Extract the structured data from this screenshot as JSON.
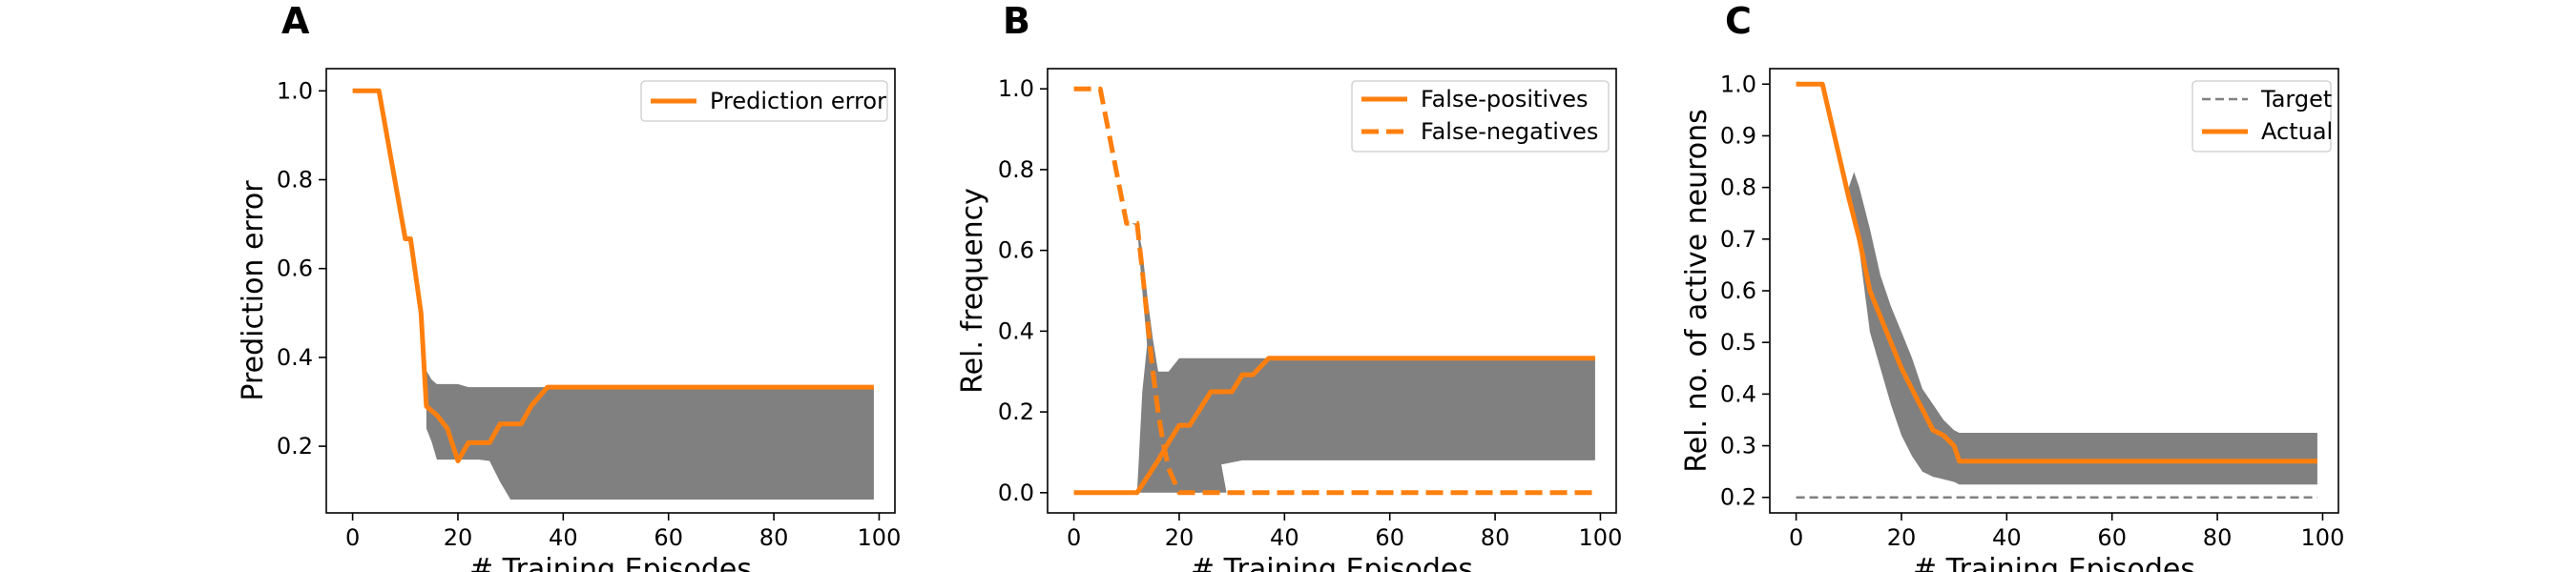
{
  "chart_data": [
    {
      "panel": "A",
      "type": "line",
      "xlabel": "# Training Episodes",
      "ylabel": "Prediction error",
      "xlim": [
        -5,
        103
      ],
      "ylim": [
        0.05,
        1.05
      ],
      "xticks": [
        0,
        20,
        40,
        60,
        80,
        100
      ],
      "yticks": [
        0.2,
        0.4,
        0.6,
        0.8,
        1.0
      ],
      "legend": "top-right",
      "series": [
        {
          "name": "Prediction error",
          "style": "solid",
          "x": [
            0,
            5,
            10,
            11,
            13,
            14,
            16,
            18,
            20,
            22,
            24,
            26,
            28,
            30,
            32,
            34,
            37,
            40,
            60,
            80,
            99
          ],
          "y": [
            1.0,
            1.0,
            0.667,
            0.667,
            0.5,
            0.29,
            0.27,
            0.24,
            0.167,
            0.208,
            0.208,
            0.208,
            0.25,
            0.25,
            0.25,
            0.292,
            0.333,
            0.333,
            0.333,
            0.333,
            0.333
          ]
        }
      ],
      "band": {
        "x": [
          14,
          15,
          16,
          18,
          20,
          22,
          24,
          26,
          28,
          30,
          37,
          60,
          99
        ],
        "upper": [
          0.37,
          0.35,
          0.34,
          0.34,
          0.34,
          0.333,
          0.333,
          0.333,
          0.333,
          0.333,
          0.333,
          0.333,
          0.333
        ],
        "lower": [
          0.24,
          0.21,
          0.17,
          0.17,
          0.17,
          0.17,
          0.17,
          0.167,
          0.12,
          0.08,
          0.08,
          0.08,
          0.08
        ]
      }
    },
    {
      "panel": "B",
      "type": "line",
      "xlabel": "# Training Episodes",
      "ylabel": "Rel. frequency",
      "xlim": [
        -5,
        103
      ],
      "ylim": [
        -0.05,
        1.05
      ],
      "xticks": [
        0,
        20,
        40,
        60,
        80,
        100
      ],
      "yticks": [
        0.0,
        0.2,
        0.4,
        0.6,
        0.8,
        1.0
      ],
      "legend": "top-right",
      "series": [
        {
          "name": "False-positives",
          "style": "solid",
          "x": [
            0,
            5,
            10,
            12,
            14,
            16,
            18,
            20,
            22,
            24,
            26,
            28,
            30,
            32,
            34,
            37,
            60,
            80,
            99
          ],
          "y": [
            0,
            0,
            0,
            0,
            0.04,
            0.08,
            0.125,
            0.167,
            0.167,
            0.208,
            0.25,
            0.25,
            0.25,
            0.292,
            0.292,
            0.333,
            0.333,
            0.333,
            0.333
          ]
        },
        {
          "name": "False-negatives",
          "style": "dashed",
          "x": [
            0,
            5,
            10,
            11,
            12,
            13,
            14,
            15,
            16,
            17,
            18,
            19,
            20,
            21,
            22,
            30,
            60,
            80,
            99
          ],
          "y": [
            1.0,
            1.0,
            0.667,
            0.667,
            0.667,
            0.55,
            0.42,
            0.3,
            0.2,
            0.12,
            0.06,
            0.03,
            0.0,
            0.0,
            0.0,
            0.0,
            0.0,
            0.0,
            0.0
          ]
        }
      ],
      "bands": [
        {
          "x": [
            12,
            13,
            14,
            15,
            16,
            18,
            20,
            24,
            28,
            32,
            37,
            60,
            99
          ],
          "upper": [
            0.0,
            0.25,
            0.38,
            0.36,
            0.3,
            0.3,
            0.333,
            0.333,
            0.333,
            0.333,
            0.333,
            0.333,
            0.333
          ],
          "lower": [
            0.0,
            0.0,
            0.0,
            0.0,
            0.0,
            0.0,
            0.0,
            0.0,
            0.07,
            0.08,
            0.08,
            0.08,
            0.08
          ]
        },
        {
          "x": [
            11,
            12,
            13,
            14,
            15,
            16,
            18,
            20,
            22,
            26,
            27,
            28,
            29
          ],
          "upper": [
            0.667,
            0.667,
            0.6,
            0.48,
            0.38,
            0.3,
            0.2,
            0.12,
            0.05,
            0.05,
            0.06,
            0.07,
            0.0
          ],
          "lower": [
            0.667,
            0.66,
            0.5,
            0.35,
            0.2,
            0.1,
            0.02,
            0.0,
            0.0,
            0.0,
            0.0,
            0.0,
            0.0
          ]
        }
      ]
    },
    {
      "panel": "C",
      "type": "line",
      "xlabel": "# Training Episodes",
      "ylabel": "Rel. no. of active neurons",
      "xlim": [
        -5,
        103
      ],
      "ylim": [
        0.17,
        1.03
      ],
      "xticks": [
        0,
        20,
        40,
        60,
        80,
        100
      ],
      "yticks": [
        0.2,
        0.3,
        0.4,
        0.5,
        0.6,
        0.7,
        0.8,
        0.9,
        1.0
      ],
      "legend": "top-right",
      "series": [
        {
          "name": "Target",
          "style": "dashed-thin",
          "x": [
            0,
            99
          ],
          "y": [
            0.2,
            0.2
          ]
        },
        {
          "name": "Actual",
          "style": "solid",
          "x": [
            0,
            5,
            10,
            12,
            14,
            16,
            18,
            20,
            22,
            24,
            26,
            28,
            30,
            31,
            40,
            60,
            80,
            99
          ],
          "y": [
            1.0,
            1.0,
            0.78,
            0.7,
            0.6,
            0.55,
            0.5,
            0.45,
            0.41,
            0.37,
            0.33,
            0.32,
            0.3,
            0.27,
            0.27,
            0.27,
            0.27,
            0.27
          ]
        }
      ],
      "band": {
        "x": [
          10,
          11,
          12,
          14,
          16,
          18,
          20,
          22,
          24,
          26,
          28,
          30,
          31,
          40,
          99
        ],
        "upper": [
          0.8,
          0.83,
          0.8,
          0.72,
          0.63,
          0.57,
          0.52,
          0.47,
          0.41,
          0.38,
          0.35,
          0.33,
          0.325,
          0.325,
          0.325
        ],
        "lower": [
          0.78,
          0.75,
          0.68,
          0.52,
          0.45,
          0.38,
          0.32,
          0.28,
          0.25,
          0.24,
          0.235,
          0.23,
          0.225,
          0.225,
          0.225
        ]
      }
    }
  ],
  "colors": {
    "line": "#ff7f0e",
    "band": "#808080",
    "target": "#808080",
    "axes": "#000000"
  }
}
